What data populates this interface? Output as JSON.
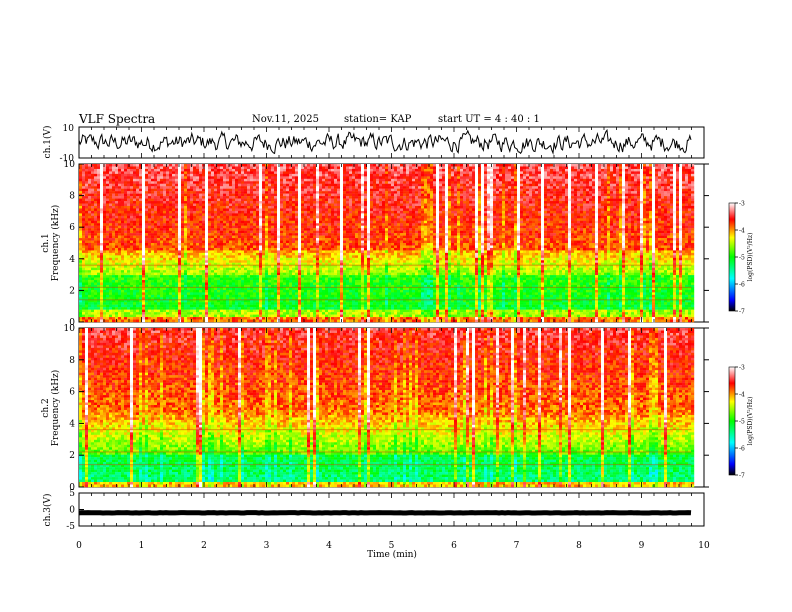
{
  "header": {
    "title": "VLF Spectra",
    "date": "Nov.11, 2025",
    "station": "station= KAP",
    "start_ut": "start  UT =   4 : 40 : 1"
  },
  "chart_data": [
    {
      "type": "line",
      "name": "ch1-waveform",
      "ylabel": "ch.1(V)",
      "ylim": [
        -10,
        10
      ],
      "yticks": [
        "10",
        "-10"
      ],
      "xlim": [
        0,
        10
      ],
      "data_end_min": 9.8,
      "series_note": "noisy voltage trace around 0 V, amplitude about ±5 V"
    },
    {
      "type": "heatmap",
      "name": "ch1-spectrogram",
      "ylabel_channel": "ch.1",
      "ylabel": "Frequency  (kHz)",
      "ylim": [
        0,
        10
      ],
      "yticks": [
        "0",
        "2",
        "4",
        "6",
        "8",
        "10"
      ],
      "xlim": [
        0,
        9.8
      ],
      "colorbar": {
        "label": "log(PSD)(V²/Hz)",
        "range": [
          -7,
          -3
        ],
        "ticks": [
          "-3",
          "-4",
          "-5",
          "-6",
          "-7"
        ]
      }
    },
    {
      "type": "heatmap",
      "name": "ch2-spectrogram",
      "ylabel_channel": "ch.2",
      "ylabel": "Frequency  (kHz)",
      "ylim": [
        0,
        10
      ],
      "yticks": [
        "0",
        "2",
        "4",
        "6",
        "8",
        "10"
      ],
      "xlim": [
        0,
        9.8
      ],
      "colorbar": {
        "label": "log(PSD)(V²/Hz)",
        "range": [
          -7,
          -3
        ],
        "ticks": [
          "-3",
          "-4",
          "-5",
          "-6",
          "-7"
        ]
      }
    },
    {
      "type": "line",
      "name": "ch3-waveform",
      "ylabel": "ch.3(V)",
      "ylim": [
        -5,
        5
      ],
      "yticks": [
        "5",
        "0",
        "-5"
      ],
      "xlim": [
        0,
        10
      ],
      "series_note": "nearly constant level near -1 V with small noise"
    }
  ],
  "x_axis": {
    "label": "Time  (min)",
    "ticks": [
      "0",
      "1",
      "2",
      "3",
      "4",
      "5",
      "6",
      "7",
      "8",
      "9",
      "10"
    ],
    "range": [
      0,
      10
    ]
  }
}
